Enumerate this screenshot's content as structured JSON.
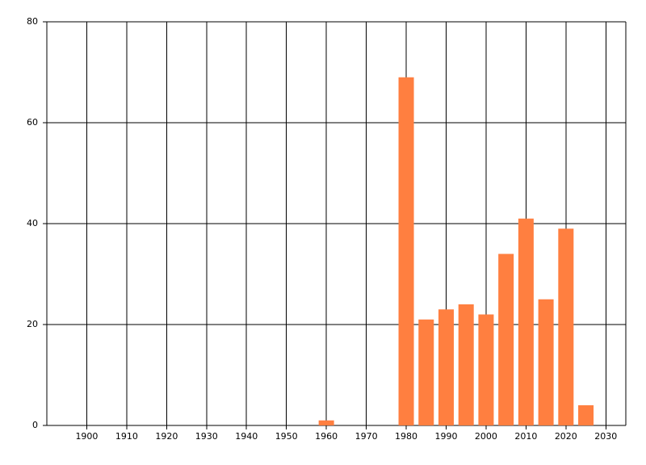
{
  "chart_data": {
    "type": "bar",
    "x": [
      1960,
      1980,
      1985,
      1990,
      1995,
      2000,
      2005,
      2010,
      2015,
      2020,
      2025
    ],
    "values": [
      1,
      69,
      21,
      23,
      24,
      22,
      34,
      41,
      25,
      39,
      4
    ],
    "color": "#ff7f40",
    "xlim": [
      1890,
      2035
    ],
    "xticks": [
      1900,
      1910,
      1920,
      1930,
      1940,
      1950,
      1960,
      1970,
      1980,
      1990,
      2000,
      2010,
      2020,
      2030
    ],
    "ylim": [
      0,
      80
    ],
    "yticks": [
      0,
      20,
      40,
      60,
      80
    ],
    "grid": true
  }
}
